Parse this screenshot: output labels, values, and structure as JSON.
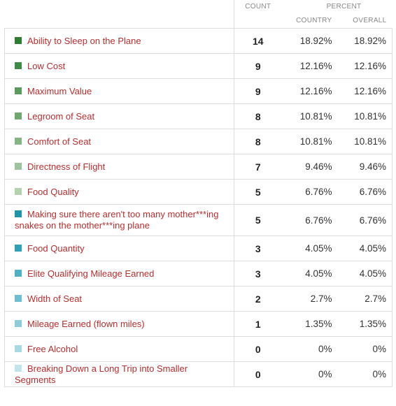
{
  "header": {
    "count": "COUNT",
    "percent": "PERCENT",
    "country": "COUNTRY",
    "overall": "OVERALL"
  },
  "rows": [
    {
      "label": "Ability to Sleep on the Plane",
      "count": "14",
      "country": "18.92%",
      "overall": "18.92%",
      "color": "#2e7d32"
    },
    {
      "label": "Low Cost",
      "count": "9",
      "country": "12.16%",
      "overall": "12.16%",
      "color": "#3f8a45"
    },
    {
      "label": "Maximum Value",
      "count": "9",
      "country": "12.16%",
      "overall": "12.16%",
      "color": "#5a9b5d"
    },
    {
      "label": "Legroom of Seat",
      "count": "8",
      "country": "10.81%",
      "overall": "10.81%",
      "color": "#6fa76f"
    },
    {
      "label": "Comfort of Seat",
      "count": "8",
      "country": "10.81%",
      "overall": "10.81%",
      "color": "#86b584"
    },
    {
      "label": "Directness of Flight",
      "count": "7",
      "country": "9.46%",
      "overall": "9.46%",
      "color": "#9cc39a"
    },
    {
      "label": "Food Quality",
      "count": "5",
      "country": "6.76%",
      "overall": "6.76%",
      "color": "#b4d2ae"
    },
    {
      "label": "Making sure there aren't too many mother***ing snakes on the mother***ing plane",
      "count": "5",
      "country": "6.76%",
      "overall": "6.76%",
      "color": "#1e94a8"
    },
    {
      "label": "Food Quantity",
      "count": "3",
      "country": "4.05%",
      "overall": "4.05%",
      "color": "#2ea1b5"
    },
    {
      "label": "Elite Qualifying Mileage Earned",
      "count": "3",
      "country": "4.05%",
      "overall": "4.05%",
      "color": "#4eb0c2"
    },
    {
      "label": "Width of Seat",
      "count": "2",
      "country": "2.7%",
      "overall": "2.7%",
      "color": "#6dbfcf"
    },
    {
      "label": "Mileage Earned (flown miles)",
      "count": "1",
      "country": "1.35%",
      "overall": "1.35%",
      "color": "#8dcdda"
    },
    {
      "label": "Free Alcohol",
      "count": "0",
      "country": "0%",
      "overall": "0%",
      "color": "#a8d9e3"
    },
    {
      "label": "Breaking Down a Long Trip into Smaller Segments",
      "count": "0",
      "country": "0%",
      "overall": "0%",
      "color": "#c2e4ec"
    }
  ]
}
